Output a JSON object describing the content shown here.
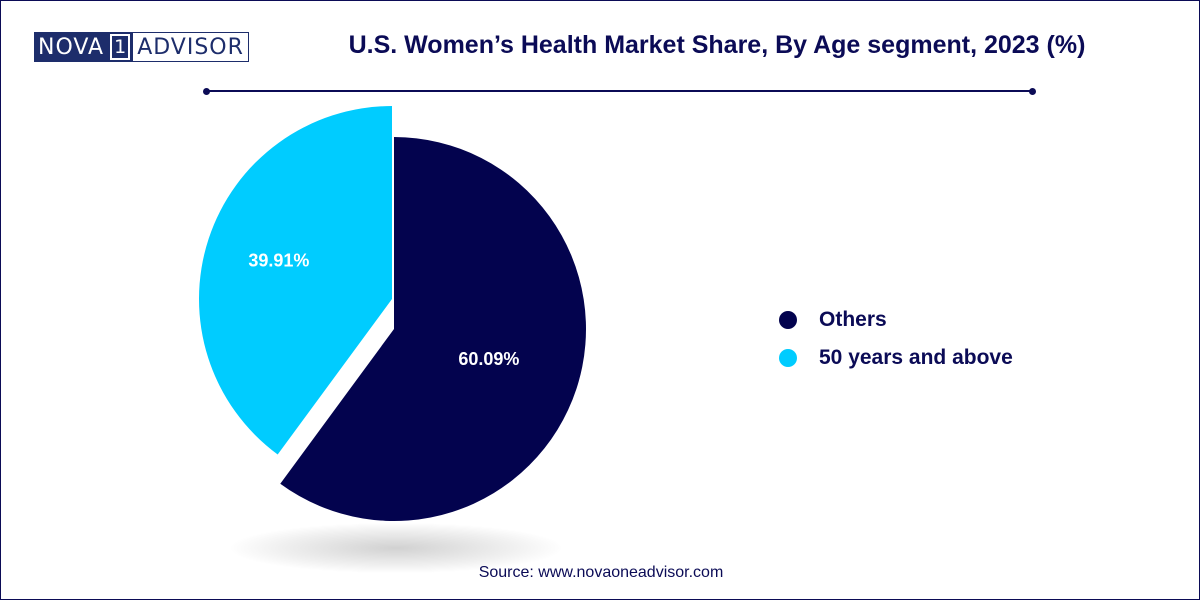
{
  "logo": {
    "part1": "NOVA",
    "number": "1",
    "part2": "ADVISOR"
  },
  "source": "Source: www.novaoneadvisor.com",
  "colors": {
    "others": "#03034e",
    "fifty_plus": "#00ccff",
    "text": "#0b0b56"
  },
  "chart_data": {
    "type": "pie",
    "title": "U.S. Women’s Health Market Share, By Age segment, 2023 (%)",
    "slices": [
      {
        "name": "Others",
        "value": 60.09,
        "label": "60.09%",
        "color": "#03034e"
      },
      {
        "name": "50 years and above",
        "value": 39.91,
        "label": "39.91%",
        "color": "#00ccff"
      }
    ],
    "legend_position": "right"
  }
}
